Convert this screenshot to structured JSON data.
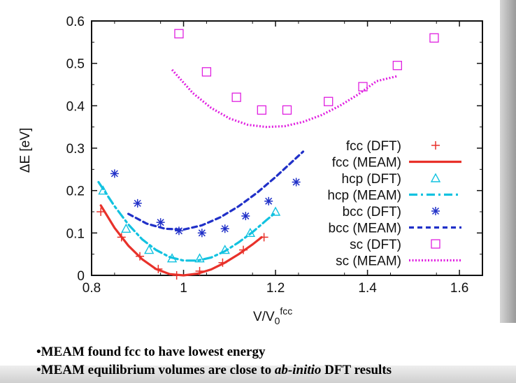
{
  "chart_data": {
    "type": "scatter",
    "xlabel": "V/V",
    "xlabel_sub": "0",
    "xlabel_sup": "fcc",
    "ylabel": "ΔE [eV]",
    "xlim": [
      0.8,
      1.65
    ],
    "ylim": [
      0,
      0.6
    ],
    "x_ticks": [
      "0.8",
      "1",
      "1.2",
      "1.4",
      "1.6"
    ],
    "y_ticks": [
      "0",
      "0.1",
      "0.2",
      "0.3",
      "0.4",
      "0.5",
      "0.6"
    ],
    "grid": false,
    "legend_position": "right",
    "series": [
      {
        "name": "fcc (DFT)",
        "kind": "markers",
        "marker": "plus",
        "color": "#e8312a",
        "x": [
          0.82,
          0.865,
          0.905,
          0.945,
          0.985,
          1.035,
          1.085,
          1.13,
          1.175
        ],
        "y": [
          0.15,
          0.09,
          0.045,
          0.015,
          0.0,
          0.01,
          0.03,
          0.06,
          0.09
        ]
      },
      {
        "name": "fcc (MEAM)",
        "kind": "line",
        "dash": "solid",
        "color": "#e8312a",
        "x": [
          0.82,
          0.85,
          0.88,
          0.91,
          0.94,
          0.97,
          1.0,
          1.03,
          1.06,
          1.09,
          1.12,
          1.15,
          1.17
        ],
        "y": [
          0.165,
          0.112,
          0.07,
          0.038,
          0.015,
          0.003,
          0.0,
          0.004,
          0.014,
          0.03,
          0.05,
          0.073,
          0.09
        ]
      },
      {
        "name": "hcp (DFT)",
        "kind": "markers",
        "marker": "triangle",
        "color": "#12c2e0",
        "x": [
          0.825,
          0.875,
          0.925,
          0.975,
          1.035,
          1.09,
          1.145,
          1.2
        ],
        "y": [
          0.2,
          0.11,
          0.06,
          0.04,
          0.04,
          0.06,
          0.1,
          0.15
        ]
      },
      {
        "name": "hcp (MEAM)",
        "kind": "line",
        "dash": "dashdot",
        "color": "#12c2e0",
        "x": [
          0.815,
          0.85,
          0.88,
          0.91,
          0.94,
          0.97,
          1.0,
          1.03,
          1.06,
          1.09,
          1.12,
          1.15,
          1.18,
          1.2
        ],
        "y": [
          0.22,
          0.163,
          0.12,
          0.085,
          0.06,
          0.043,
          0.035,
          0.035,
          0.042,
          0.057,
          0.078,
          0.102,
          0.13,
          0.148
        ]
      },
      {
        "name": "bcc (DFT)",
        "kind": "markers",
        "marker": "star",
        "color": "#2030c8",
        "x": [
          0.85,
          0.9,
          0.95,
          0.99,
          1.04,
          1.09,
          1.135,
          1.185,
          1.245
        ],
        "y": [
          0.24,
          0.17,
          0.125,
          0.105,
          0.1,
          0.11,
          0.14,
          0.175,
          0.22
        ]
      },
      {
        "name": "bcc (MEAM)",
        "kind": "line",
        "dash": "dashed",
        "color": "#2030c8",
        "x": [
          0.88,
          0.92,
          0.96,
          1.0,
          1.04,
          1.08,
          1.12,
          1.16,
          1.2,
          1.24,
          1.26
        ],
        "y": [
          0.145,
          0.122,
          0.11,
          0.108,
          0.118,
          0.137,
          0.163,
          0.195,
          0.232,
          0.272,
          0.292
        ]
      },
      {
        "name": "sc (DFT)",
        "kind": "markers",
        "marker": "square",
        "color": "#e020e0",
        "x": [
          0.99,
          1.05,
          1.115,
          1.17,
          1.225,
          1.315,
          1.39,
          1.465,
          1.545
        ],
        "y": [
          0.57,
          0.48,
          0.42,
          0.39,
          0.39,
          0.41,
          0.445,
          0.495,
          0.56
        ]
      },
      {
        "name": "sc (MEAM)",
        "kind": "line",
        "dash": "dotted",
        "color": "#e020e0",
        "x": [
          0.975,
          1.02,
          1.06,
          1.1,
          1.14,
          1.18,
          1.22,
          1.26,
          1.3,
          1.34,
          1.38,
          1.42,
          1.465
        ],
        "y": [
          0.485,
          0.43,
          0.395,
          0.37,
          0.355,
          0.35,
          0.352,
          0.362,
          0.378,
          0.4,
          0.427,
          0.458,
          0.47
        ]
      }
    ]
  },
  "bullets": {
    "item1": "•MEAM found fcc to have lowest energy",
    "item2_before": "•MEAM equilibrium volumes are close to ",
    "item2_italic": "ab-initio",
    "item2_after": " DFT results"
  }
}
